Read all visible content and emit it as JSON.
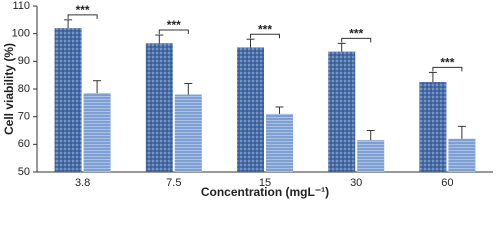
{
  "chart_data": {
    "type": "bar",
    "x_label": "Concentration (mgL⁻¹)",
    "y_label": "Cell viability (%)",
    "categories": [
      "3.8",
      "7.5",
      "15",
      "30",
      "60"
    ],
    "series": [
      {
        "color": "#4a6fa8",
        "values": [
          102,
          96.5,
          95,
          93.5,
          82.5
        ],
        "errors": [
          3,
          3,
          3,
          3,
          3.5
        ]
      },
      {
        "color": "#7d9fd3",
        "values": [
          78.5,
          78,
          71,
          61.5,
          62
        ],
        "errors": [
          4.5,
          4,
          2.5,
          3.5,
          4.5
        ]
      }
    ],
    "significance": [
      "***",
      "***",
      "***",
      "***",
      "***"
    ],
    "ylim": [
      50,
      110
    ],
    "yticks": [
      50,
      60,
      70,
      80,
      90,
      100,
      110
    ]
  }
}
